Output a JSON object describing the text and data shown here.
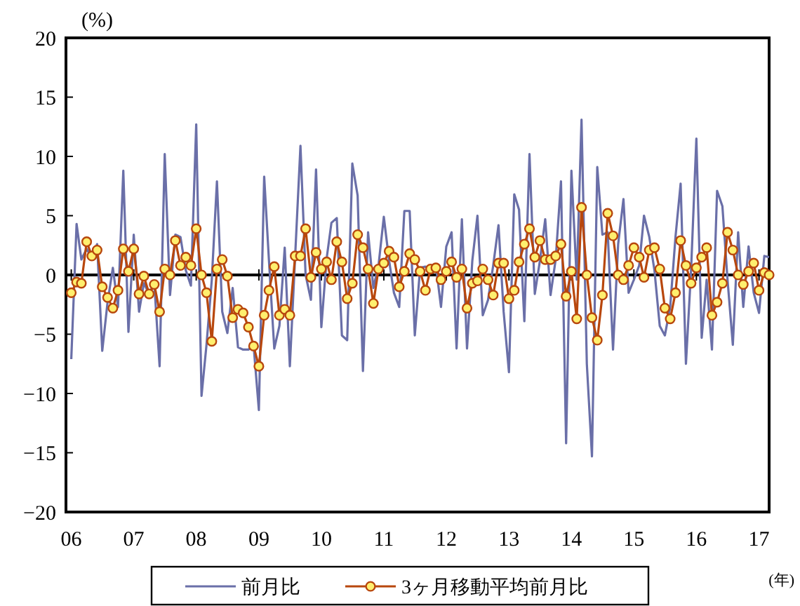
{
  "chart_data": {
    "type": "line",
    "ylabel": "(%)",
    "xlabel": "(年)",
    "x": [
      "2006-01",
      "2006-02",
      "2006-03",
      "2006-04",
      "2006-05",
      "2006-06",
      "2006-07",
      "2006-08",
      "2006-09",
      "2006-10",
      "2006-11",
      "2006-12",
      "2007-01",
      "2007-02",
      "2007-03",
      "2007-04",
      "2007-05",
      "2007-06",
      "2007-07",
      "2007-08",
      "2007-09",
      "2007-10",
      "2007-11",
      "2007-12",
      "2008-01",
      "2008-02",
      "2008-03",
      "2008-04",
      "2008-05",
      "2008-06",
      "2008-07",
      "2008-08",
      "2008-09",
      "2008-10",
      "2008-11",
      "2008-12",
      "2009-01",
      "2009-02",
      "2009-03",
      "2009-04",
      "2009-05",
      "2009-06",
      "2009-07",
      "2009-08",
      "2009-09",
      "2009-10",
      "2009-11",
      "2009-12",
      "2010-01",
      "2010-02",
      "2010-03",
      "2010-04",
      "2010-05",
      "2010-06",
      "2010-07",
      "2010-08",
      "2010-09",
      "2010-10",
      "2010-11",
      "2010-12",
      "2011-01",
      "2011-02",
      "2011-03",
      "2011-04",
      "2011-05",
      "2011-06",
      "2011-07",
      "2011-08",
      "2011-09",
      "2011-10",
      "2011-11",
      "2011-12",
      "2012-01",
      "2012-02",
      "2012-03",
      "2012-04",
      "2012-05",
      "2012-06",
      "2012-07",
      "2012-08",
      "2012-09",
      "2012-10",
      "2012-11",
      "2012-12",
      "2013-01",
      "2013-02",
      "2013-03",
      "2013-04",
      "2013-05",
      "2013-06",
      "2013-07",
      "2013-08",
      "2013-09",
      "2013-10",
      "2013-11",
      "2013-12",
      "2014-01",
      "2014-02",
      "2014-03",
      "2014-04",
      "2014-05",
      "2014-06",
      "2014-07",
      "2014-08",
      "2014-09",
      "2014-10",
      "2014-11",
      "2014-12",
      "2015-01",
      "2015-02",
      "2015-03",
      "2015-04",
      "2015-05",
      "2015-06",
      "2015-07",
      "2015-08",
      "2015-09",
      "2015-10",
      "2015-11",
      "2015-12",
      "2016-01",
      "2016-02",
      "2016-03",
      "2016-04",
      "2016-05",
      "2016-06",
      "2016-07",
      "2016-08",
      "2016-09",
      "2016-10",
      "2016-11",
      "2016-12",
      "2017-01",
      "2017-02",
      "2017-03"
    ],
    "series": [
      {
        "name": "前月比",
        "color": "#6a6fa8",
        "marker": "none",
        "values": [
          -7.1,
          4.3,
          1.3,
          2.2,
          1.4,
          2.6,
          -6.4,
          -2.3,
          0.6,
          -2.7,
          8.8,
          -4.8,
          3.4,
          -3.1,
          -0.7,
          -1.6,
          -0.7,
          -7.7,
          10.2,
          -1.7,
          3.4,
          3.2,
          0.4,
          -0.9,
          12.7,
          -10.2,
          -5.9,
          -0.4,
          7.9,
          -3.1,
          -4.9,
          -1.1,
          -6.1,
          -6.3,
          -6.3,
          -5.9,
          -11.4,
          8.3,
          1.2,
          -6.2,
          -4.3,
          2.3,
          -7.7,
          1.6,
          10.9,
          0.0,
          -2.1,
          8.9,
          -4.4,
          1.4,
          4.4,
          4.8,
          -5.1,
          -5.5,
          9.4,
          6.7,
          -8.1,
          3.6,
          -1.1,
          0.8,
          4.9,
          1.2,
          -1.5,
          -2.7,
          5.4,
          5.4,
          -5.1,
          0.6,
          0.7,
          0.4,
          0.8,
          -2.7,
          2.4,
          3.6,
          -6.2,
          4.7,
          -6.2,
          1.2,
          5.0,
          -3.4,
          -2.1,
          0.8,
          4.2,
          -3.1,
          -8.2,
          6.8,
          5.5,
          -3.9,
          10.2,
          -1.6,
          1.2,
          4.7,
          -1.7,
          1.3,
          7.9,
          -14.2,
          8.8,
          -0.4,
          13.1,
          -7.5,
          -15.3,
          9.1,
          3.4,
          3.6,
          -6.3,
          2.6,
          6.4,
          -1.5,
          -0.4,
          0.8,
          5.0,
          3.2,
          0.4,
          -4.3,
          -5.1,
          -2.7,
          3.2,
          7.7,
          -7.5,
          0.4,
          11.5,
          -5.3,
          -0.4,
          -6.3,
          7.1,
          5.8,
          -0.4,
          -5.9,
          3.6,
          -2.7,
          2.4,
          -1.5,
          -3.2,
          1.6,
          1.5
        ]
      },
      {
        "name": "3ヶ月移動平均前月比",
        "color": "#b8470d",
        "marker": "circle",
        "values": [
          -1.5,
          -0.6,
          -0.7,
          2.8,
          1.6,
          2.1,
          -1.0,
          -1.9,
          -2.8,
          -1.3,
          2.2,
          0.3,
          2.2,
          -1.6,
          -0.1,
          -1.6,
          -0.8,
          -3.1,
          0.5,
          0.0,
          2.9,
          0.8,
          1.5,
          0.8,
          3.9,
          0.0,
          -1.5,
          -5.6,
          0.5,
          1.3,
          -0.1,
          -3.6,
          -2.9,
          -3.2,
          -4.4,
          -6.0,
          -7.7,
          -3.4,
          -1.3,
          0.7,
          -3.4,
          -2.9,
          -3.4,
          1.6,
          1.6,
          3.9,
          -0.2,
          1.9,
          0.5,
          1.1,
          -0.4,
          2.8,
          1.1,
          -2.0,
          -0.7,
          3.4,
          2.3,
          0.5,
          -2.4,
          0.5,
          1.0,
          2.0,
          1.5,
          -1.0,
          0.3,
          1.8,
          1.3,
          0.3,
          -1.3,
          0.5,
          0.6,
          -0.4,
          0.3,
          1.1,
          -0.2,
          0.5,
          -2.8,
          -0.7,
          -0.5,
          0.5,
          -0.4,
          -1.7,
          1.0,
          1.0,
          -2.0,
          -1.3,
          1.1,
          2.6,
          3.9,
          1.5,
          2.9,
          1.3,
          1.3,
          1.6,
          2.6,
          -1.8,
          0.3,
          -3.7,
          5.7,
          0.0,
          -3.6,
          -5.5,
          -1.7,
          5.2,
          3.3,
          0.0,
          -0.4,
          0.8,
          2.3,
          1.5,
          -0.2,
          2.1,
          2.3,
          0.5,
          -2.8,
          -3.7,
          -1.5,
          2.9,
          0.8,
          -0.7,
          0.6,
          1.5,
          2.3,
          -3.4,
          -2.3,
          -0.7,
          3.6,
          2.1,
          0.0,
          -0.8,
          0.3,
          1.0,
          -1.3,
          0.2,
          0.0
        ]
      }
    ],
    "xlim": [
      "2005-12",
      "2017-03"
    ],
    "xticks": [
      {
        "value": "2006-01",
        "label": "06"
      },
      {
        "value": "2007-01",
        "label": "07"
      },
      {
        "value": "2008-01",
        "label": "08"
      },
      {
        "value": "2009-01",
        "label": "09"
      },
      {
        "value": "2010-01",
        "label": "10"
      },
      {
        "value": "2011-01",
        "label": "11"
      },
      {
        "value": "2012-01",
        "label": "12"
      },
      {
        "value": "2013-01",
        "label": "13"
      },
      {
        "value": "2014-01",
        "label": "14"
      },
      {
        "value": "2015-01",
        "label": "15"
      },
      {
        "value": "2016-01",
        "label": "16"
      },
      {
        "value": "2017-01",
        "label": "17"
      }
    ],
    "ylim": [
      -20,
      20
    ],
    "yticks": [
      -20,
      -15,
      -10,
      -5,
      0,
      5,
      10,
      15,
      20
    ],
    "ref_lines": [
      {
        "axis": "y",
        "value": 0,
        "color": "#000000"
      }
    ],
    "legend": "bottom",
    "line_style": "solid"
  }
}
